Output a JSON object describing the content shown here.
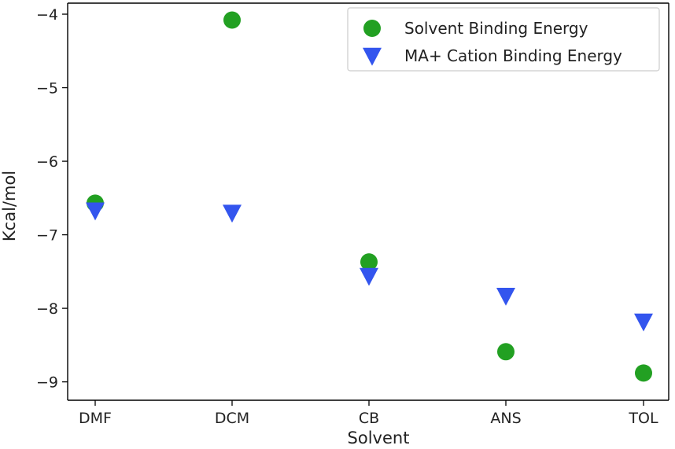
{
  "chart_data": {
    "type": "scatter",
    "categories": [
      "DMF",
      "DCM",
      "CB",
      "ANS",
      "TOL"
    ],
    "series": [
      {
        "name": "Solvent Binding Energy",
        "marker": "circle",
        "color": "#22a022",
        "values": [
          -6.57,
          -4.08,
          -7.37,
          -8.59,
          -8.88
        ]
      },
      {
        "name": "MA+ Cation Binding Energy",
        "marker": "triangle-down",
        "color": "#3355ee",
        "values": [
          -6.67,
          -6.7,
          -7.56,
          -7.83,
          -8.18
        ]
      }
    ],
    "title": "",
    "xlabel": "Solvent",
    "ylabel": "Kcal/mol",
    "yticks": [
      -4,
      -5,
      -6,
      -7,
      -8,
      -9
    ],
    "ytick_labels": [
      "−4",
      "−5",
      "−6",
      "−7",
      "−8",
      "−9"
    ],
    "ylim": [
      -9.25,
      -3.85
    ],
    "grid": false,
    "legend_position": "top-right"
  }
}
